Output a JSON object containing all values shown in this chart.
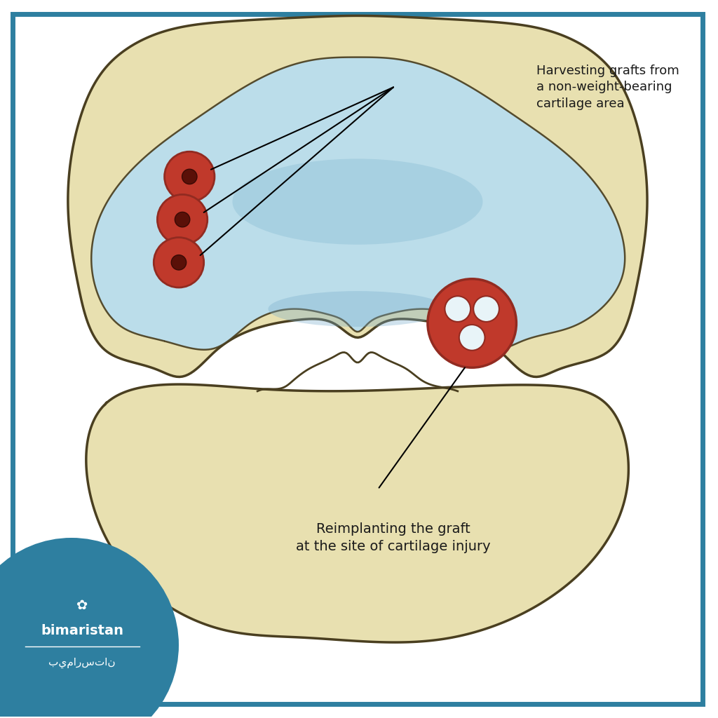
{
  "bg_color": "#ffffff",
  "border_color": "#2e7fa0",
  "border_inner_color": "#2e7fa0",
  "bone_color": "#e8e0b0",
  "bone_outline": "#4a3f20",
  "cartilage_color": "#b8ddf0",
  "cartilage_dark": "#7ab8d8",
  "graft_red": "#c0392b",
  "graft_red_dark": "#922b21",
  "graft_white": "#e8f4f8",
  "text_color": "#1a1a1a",
  "logo_bg": "#2e7fa0",
  "logo_text": "#ffffff",
  "annotation1": "Harvesting grafts from\na non-weight-bearing\ncartilage area",
  "annotation2": "Reimplanting the graft\nat the site of cartilage injury",
  "brand_name": "bimaristan",
  "brand_arabic": "بيمارستان"
}
